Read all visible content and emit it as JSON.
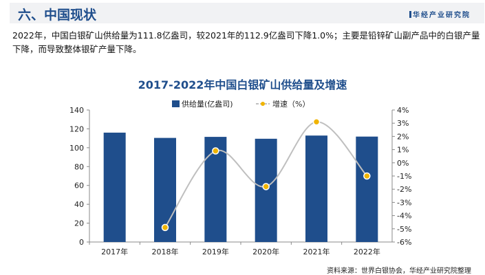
{
  "header": {
    "title": "六、中国现状",
    "logo": "华经产业研究院"
  },
  "paragraph": "2022年，中国白银矿山供给量为111.8亿盎司，较2021年的112.9亿盎司下降1.0%；主要是铅锌矿山副产品中的白银产量下降，而导致整体银矿产量下降。",
  "source": "资料来源：世界白银协会，华经产业研究院整理",
  "colors": {
    "bar": "#1f4e8c",
    "line": "#bfbfbf",
    "marker": "#f0b400",
    "title": "#1f4e8c"
  },
  "chart_data": {
    "type": "bar+line",
    "title": "2017-2022年中国白银矿山供给量及增速",
    "categories": [
      "2017年",
      "2018年",
      "2019年",
      "2020年",
      "2021年",
      "2022年"
    ],
    "series": [
      {
        "name": "供给量(亿盎司)",
        "type": "bar",
        "axis": "left",
        "values": [
          116,
          110.4,
          111.5,
          109.5,
          112.9,
          111.8
        ]
      },
      {
        "name": "增速（%）",
        "type": "line",
        "axis": "right",
        "values": [
          null,
          -4.9,
          0.9,
          -1.8,
          3.1,
          -1.0
        ]
      }
    ],
    "ylim_left": [
      0,
      140
    ],
    "yticks_left": [
      "0",
      "20",
      "40",
      "60",
      "80",
      "100",
      "120",
      "140"
    ],
    "ylim_right": [
      -6,
      4
    ],
    "yticks_right": [
      "-6%",
      "-5%",
      "-4%",
      "-3%",
      "-2%",
      "-1%",
      "0%",
      "1%",
      "2%",
      "3%",
      "4%"
    ],
    "legend": "top",
    "grid": false
  }
}
